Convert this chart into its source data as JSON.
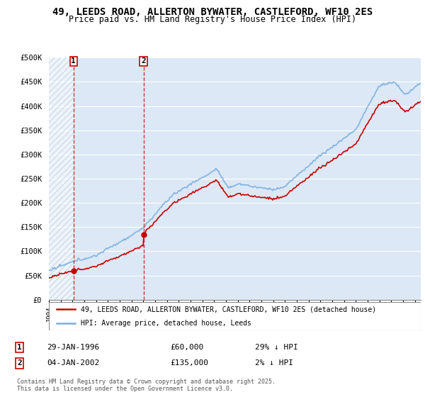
{
  "title": "49, LEEDS ROAD, ALLERTON BYWATER, CASTLEFORD, WF10 2ES",
  "subtitle": "Price paid vs. HM Land Registry's House Price Index (HPI)",
  "legend_label_red": "49, LEEDS ROAD, ALLERTON BYWATER, CASTLEFORD, WF10 2ES (detached house)",
  "legend_label_blue": "HPI: Average price, detached house, Leeds",
  "sale1_date": "29-JAN-1996",
  "sale1_price": "£60,000",
  "sale1_hpi": "29% ↓ HPI",
  "sale1_year": 1996.08,
  "sale1_price_val": 60000,
  "sale2_date": "04-JAN-2002",
  "sale2_price": "£135,000",
  "sale2_hpi": "2% ↓ HPI",
  "sale2_year": 2002.01,
  "sale2_price_val": 135000,
  "footer": "Contains HM Land Registry data © Crown copyright and database right 2025.\nThis data is licensed under the Open Government Licence v3.0.",
  "ylim": [
    0,
    500000
  ],
  "yticks": [
    0,
    50000,
    100000,
    150000,
    200000,
    250000,
    300000,
    350000,
    400000,
    450000,
    500000
  ],
  "ytick_labels": [
    "£0",
    "£50K",
    "£100K",
    "£150K",
    "£200K",
    "£250K",
    "£300K",
    "£350K",
    "£400K",
    "£450K",
    "£500K"
  ],
  "xlim_start": 1994.0,
  "xlim_end": 2025.5,
  "plot_bg_color": "#dce8f5",
  "grid_color": "#ffffff",
  "red_color": "#cc0000",
  "blue_color": "#7aade0"
}
